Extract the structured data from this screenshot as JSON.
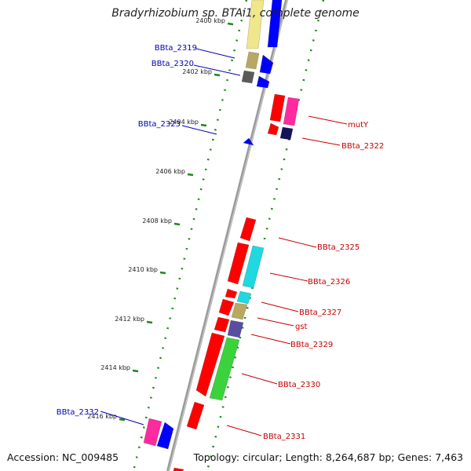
{
  "title": "Bradyrhizobium sp. BTAi1, complete genome",
  "footer": {
    "accession": "Accession: NC_009485",
    "topology": "Topology: circular; Length: 8,264,687 bp; Genes: 7,463"
  },
  "colors": {
    "backbone": "#8a8a8a",
    "track_dots": "#1a8a1a",
    "left_label": "#0000b4",
    "right_label": "#c80000",
    "red": "#ff0000",
    "blue": "#0000ff",
    "magenta": "#ff2aa0",
    "yellow": "#f0e68c",
    "khaki": "#b8a862",
    "gray": "#5a5a5a",
    "navy": "#14145a",
    "cyan": "#20d8e0",
    "slate": "#5a4ea0",
    "green": "#3cd23c"
  },
  "ticks": [
    "2400 kbp",
    "2402 kbp",
    "2404 kbp",
    "2406 kbp",
    "2408 kbp",
    "2410 kbp",
    "2412 kbp",
    "2414 kbp",
    "2416 kbp"
  ],
  "left_labels": [
    "BBta_2319",
    "BBta_2320",
    "BBta_2323",
    "BBta_2332"
  ],
  "right_labels": [
    "mutY",
    "BBta_2322",
    "BBta_2325",
    "BBta_2326",
    "BBta_2327",
    "gst",
    "BBta_2329",
    "BBta_2330",
    "BBta_2331"
  ]
}
